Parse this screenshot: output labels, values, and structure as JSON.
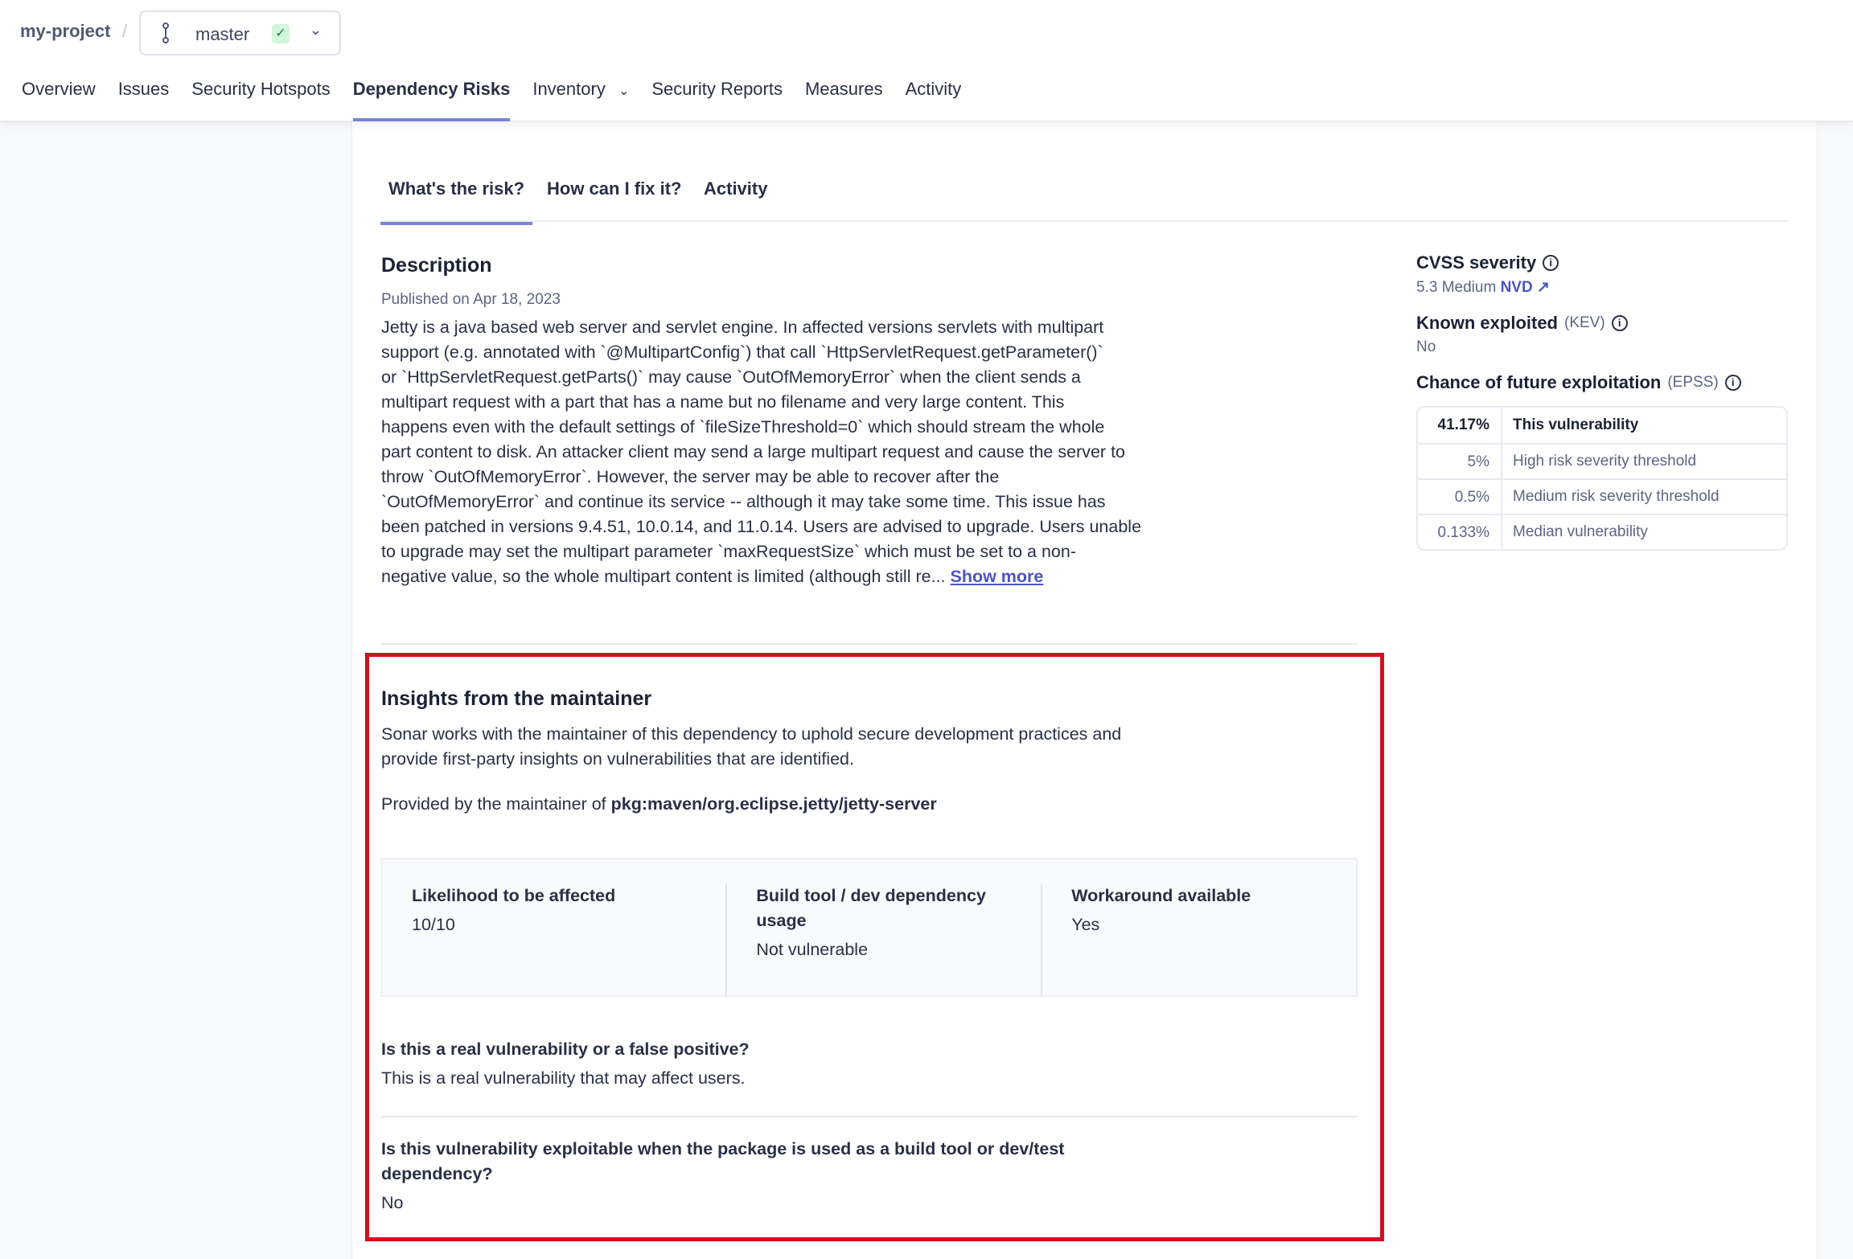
{
  "header": {
    "project": "my-project",
    "separator": "/",
    "branch": {
      "name": "master",
      "status_icon": "check-icon",
      "status_color": "#d3f6dc"
    },
    "nav": [
      {
        "label": "Overview"
      },
      {
        "label": "Issues"
      },
      {
        "label": "Security Hotspots"
      },
      {
        "label": "Dependency Risks",
        "active": true
      },
      {
        "label": "Inventory",
        "dropdown": true
      },
      {
        "label": "Security Reports"
      },
      {
        "label": "Measures"
      },
      {
        "label": "Activity"
      }
    ]
  },
  "tabs": [
    {
      "label": "What's the risk?",
      "active": true
    },
    {
      "label": "How can I fix it?"
    },
    {
      "label": "Activity"
    }
  ],
  "description": {
    "title": "Description",
    "published": "Published on Apr 18, 2023",
    "lines": [
      "Jetty is a java based web server and servlet engine. In affected versions servlets with multipart",
      "support (e.g. annotated with `@MultipartConfig`) that call `HttpServletRequest.getParameter()`",
      "or `HttpServletRequest.getParts()` may cause `OutOfMemoryError` when the client sends a",
      "multipart request with a part that has a name but no filename and very large content. This",
      "happens even with the default settings of `fileSizeThreshold=0` which should stream the whole",
      "part content to disk. An attacker client may send a large multipart request and cause the server to",
      "throw `OutOfMemoryError`. However, the server may be able to recover after the",
      "`OutOfMemoryError` and continue its service -- although it may take some time. This issue has",
      "been patched in versions 9.4.51, 10.0.14, and 11.0.14. Users are advised to upgrade. Users unable",
      "to upgrade may set the multipart parameter `maxRequestSize` which must be set to a non-"
    ],
    "last_line": "negative value, so the whole multipart content is limited (although still re...",
    "show_more": "Show more"
  },
  "insights": {
    "title": "Insights from the maintainer",
    "intro_lines": [
      "Sonar works with the maintainer of this dependency to uphold secure development practices and",
      "provide first-party insights on vulnerabilities that are identified."
    ],
    "provided_prefix": "Provided by the maintainer of",
    "package": "pkg:maven/org.eclipse.jetty/jetty-server",
    "cards": [
      {
        "label": "Likelihood to be affected",
        "value": "10/10"
      },
      {
        "label": "Build tool / dev dependency usage",
        "value": "Not vulnerable"
      },
      {
        "label": "Workaround available",
        "value": "Yes"
      }
    ],
    "qa": [
      {
        "q": "Is this a real vulnerability or a false positive?",
        "a": "This is a real vulnerability that may affect users."
      },
      {
        "q": "Is this vulnerability exploitable when the package is used as a build tool or dev/test dependency?",
        "a": "No"
      }
    ],
    "highlight_color": "#d0111f"
  },
  "sidebar": {
    "cvss": {
      "title": "CVSS severity",
      "value": "5.3 Medium",
      "source": "NVD"
    },
    "kev": {
      "title": "Known exploited",
      "abbr": "(KEV)",
      "value": "No"
    },
    "epss": {
      "title": "Chance of future exploitation",
      "abbr": "(EPSS)",
      "rows": [
        {
          "pct": "41.17%",
          "label": "This vulnerability"
        },
        {
          "pct": "5%",
          "label": "High risk severity threshold"
        },
        {
          "pct": "0.5%",
          "label": "Medium risk severity threshold"
        },
        {
          "pct": "0.133%",
          "label": "Median vulnerability"
        }
      ]
    }
  }
}
